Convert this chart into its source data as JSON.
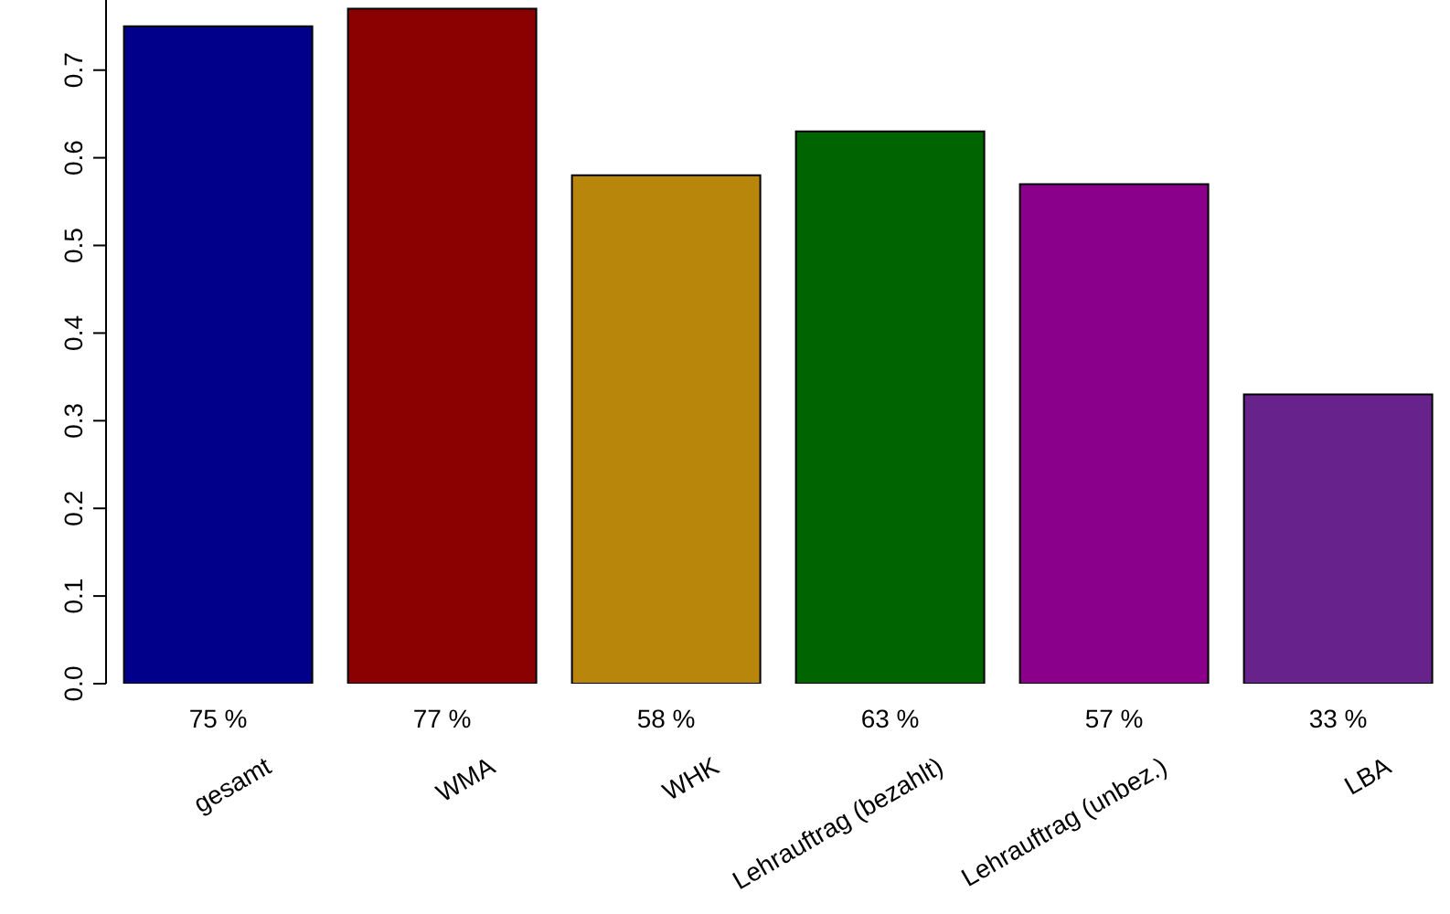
{
  "chart_data": {
    "type": "bar",
    "categories": [
      "gesamt",
      "WMA",
      "WHK",
      "Lehrauftrag (bezahlt)",
      "Lehrauftrag (unbez.)",
      "LBA"
    ],
    "values": [
      0.75,
      0.77,
      0.58,
      0.63,
      0.57,
      0.33
    ],
    "colors": [
      "#00008b",
      "#8b0000",
      "#b8860b",
      "#006400",
      "#8b008b",
      "#68228b"
    ],
    "value_labels": [
      "75 %",
      "77 %",
      "58 %",
      "63 %",
      "57 %",
      "33 %"
    ],
    "ylim": [
      0,
      0.78
    ],
    "yticks": [
      {
        "value": 0,
        "label": "0.0"
      },
      0.1,
      0.2,
      0.3,
      0.4,
      0.5,
      0.6,
      0.7
    ],
    "grid": false
  }
}
